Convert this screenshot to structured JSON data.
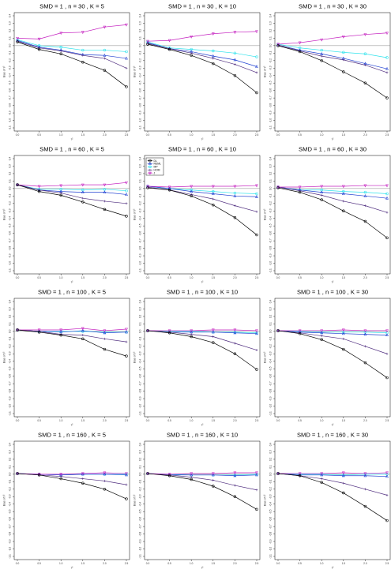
{
  "chart_data": {
    "type": "line",
    "ylabel": "Bias of τ²",
    "xlabel": "τ²",
    "x": [
      0.0,
      0.5,
      1.0,
      1.5,
      2.0,
      2.5
    ],
    "x_ticks": [
      "0.0",
      "0.5",
      "1.0",
      "1.5",
      "2.0",
      "2.5"
    ],
    "y_ticks": [
      "-1.1",
      "-1.0",
      "-0.9",
      "-0.8",
      "-0.7",
      "-0.6",
      "-0.5",
      "-0.4",
      "-0.3",
      "-0.2",
      "-0.1",
      "0.0",
      "0.1",
      "0.2",
      "0.3",
      "0.4"
    ],
    "ylim": [
      -1.1,
      0.4
    ],
    "xlim": [
      0.0,
      2.5
    ],
    "reference_line": 0,
    "legend_location": "top-left (panel n = 60, K = 10)",
    "legend": [
      {
        "name": "DL",
        "color": "#000000",
        "marker": "circle"
      },
      {
        "name": "REML",
        "color": "#1f3fd1",
        "marker": "triangle-up"
      },
      {
        "name": "MP",
        "color": "#2fe3ec",
        "marker": "circle"
      },
      {
        "name": "HOM",
        "color": "#4f2d7f",
        "marker": "cross"
      },
      {
        "name": "J",
        "color": "#c41fbf",
        "marker": "triangle-down"
      }
    ],
    "panels": [
      {
        "title": "SMD = 1 , n = 30 , K = 5",
        "series": [
          {
            "name": "J",
            "values": [
              0.1,
              0.09,
              0.17,
              0.18,
              0.25,
              0.28
            ]
          },
          {
            "name": "MP",
            "values": [
              0.08,
              0.0,
              -0.02,
              -0.06,
              -0.06,
              -0.08
            ]
          },
          {
            "name": "REML",
            "values": [
              0.07,
              -0.02,
              -0.06,
              -0.12,
              -0.13,
              -0.17
            ]
          },
          {
            "name": "HOM",
            "values": [
              0.06,
              -0.03,
              -0.07,
              -0.13,
              -0.17,
              -0.3
            ]
          },
          {
            "name": "DL",
            "values": [
              0.05,
              -0.05,
              -0.11,
              -0.22,
              -0.33,
              -0.55
            ]
          }
        ]
      },
      {
        "title": "SMD = 1 , n = 30 , K = 10",
        "series": [
          {
            "name": "J",
            "values": [
              0.06,
              0.07,
              0.12,
              0.16,
              0.18,
              0.19
            ]
          },
          {
            "name": "MP",
            "values": [
              0.05,
              -0.03,
              -0.05,
              -0.07,
              -0.1,
              -0.15
            ]
          },
          {
            "name": "REML",
            "values": [
              0.04,
              -0.04,
              -0.08,
              -0.14,
              -0.19,
              -0.28
            ]
          },
          {
            "name": "HOM",
            "values": [
              0.03,
              -0.04,
              -0.1,
              -0.17,
              -0.25,
              -0.36
            ]
          },
          {
            "name": "DL",
            "values": [
              0.02,
              -0.05,
              -0.13,
              -0.24,
              -0.4,
              -0.63
            ]
          }
        ]
      },
      {
        "title": "SMD = 1 , n = 30 , K = 30",
        "series": [
          {
            "name": "J",
            "values": [
              0.02,
              0.04,
              0.08,
              0.12,
              0.15,
              0.17
            ]
          },
          {
            "name": "MP",
            "values": [
              0.02,
              -0.03,
              -0.06,
              -0.09,
              -0.11,
              -0.16
            ]
          },
          {
            "name": "REML",
            "values": [
              0.01,
              -0.06,
              -0.11,
              -0.17,
              -0.24,
              -0.31
            ]
          },
          {
            "name": "HOM",
            "values": [
              0.01,
              -0.07,
              -0.14,
              -0.19,
              -0.26,
              -0.36
            ]
          },
          {
            "name": "DL",
            "values": [
              0.0,
              -0.08,
              -0.2,
              -0.35,
              -0.5,
              -0.7
            ]
          }
        ]
      },
      {
        "title": "SMD = 1 , n = 60 , K = 5",
        "series": [
          {
            "name": "J",
            "values": [
              0.05,
              0.03,
              0.04,
              0.05,
              0.05,
              0.08
            ]
          },
          {
            "name": "MP",
            "values": [
              0.05,
              -0.01,
              -0.01,
              -0.02,
              -0.01,
              -0.03
            ]
          },
          {
            "name": "REML",
            "values": [
              0.05,
              -0.02,
              -0.04,
              -0.05,
              -0.05,
              -0.08
            ]
          },
          {
            "name": "HOM",
            "values": [
              0.05,
              -0.02,
              -0.06,
              -0.13,
              -0.17,
              -0.2
            ]
          },
          {
            "name": "DL",
            "values": [
              0.05,
              -0.04,
              -0.09,
              -0.18,
              -0.28,
              -0.37
            ]
          }
        ]
      },
      {
        "title": "SMD = 1 , n = 60 , K = 10",
        "series": [
          {
            "name": "J",
            "values": [
              0.03,
              0.02,
              0.03,
              0.03,
              0.03,
              0.04
            ]
          },
          {
            "name": "MP",
            "values": [
              0.03,
              0.0,
              -0.02,
              -0.04,
              -0.06,
              -0.07
            ]
          },
          {
            "name": "REML",
            "values": [
              0.03,
              0.0,
              -0.04,
              -0.07,
              -0.1,
              -0.11
            ]
          },
          {
            "name": "HOM",
            "values": [
              0.02,
              -0.02,
              -0.08,
              -0.14,
              -0.23,
              -0.31
            ]
          },
          {
            "name": "DL",
            "values": [
              0.01,
              -0.02,
              -0.1,
              -0.22,
              -0.39,
              -0.62
            ]
          }
        ]
      },
      {
        "title": "SMD = 1 , n = 60 , K = 30",
        "series": [
          {
            "name": "J",
            "values": [
              0.02,
              0.02,
              0.03,
              0.03,
              0.04,
              0.04
            ]
          },
          {
            "name": "MP",
            "values": [
              0.02,
              -0.02,
              -0.02,
              -0.04,
              -0.05,
              -0.07
            ]
          },
          {
            "name": "REML",
            "values": [
              0.02,
              -0.02,
              -0.05,
              -0.07,
              -0.1,
              -0.13
            ]
          },
          {
            "name": "HOM",
            "values": [
              0.02,
              -0.03,
              -0.09,
              -0.17,
              -0.23,
              -0.32
            ]
          },
          {
            "name": "DL",
            "values": [
              0.01,
              -0.05,
              -0.15,
              -0.3,
              -0.44,
              -0.66
            ]
          }
        ]
      },
      {
        "title": "SMD = 1 , n = 100 , K = 5",
        "series": [
          {
            "name": "J",
            "values": [
              0.02,
              0.02,
              0.02,
              0.04,
              0.01,
              0.03
            ]
          },
          {
            "name": "MP",
            "values": [
              0.02,
              0.0,
              0.0,
              0.0,
              -0.01,
              -0.01
            ]
          },
          {
            "name": "REML",
            "values": [
              0.02,
              0.0,
              -0.01,
              0.01,
              -0.02,
              -0.01
            ]
          },
          {
            "name": "HOM",
            "values": [
              0.02,
              0.0,
              -0.04,
              -0.05,
              -0.1,
              -0.14
            ]
          },
          {
            "name": "DL",
            "values": [
              0.02,
              -0.01,
              -0.05,
              -0.1,
              -0.24,
              -0.33
            ]
          }
        ]
      },
      {
        "title": "SMD = 1 , n = 100 , K = 10",
        "series": [
          {
            "name": "J",
            "values": [
              0.01,
              0.01,
              0.01,
              0.02,
              0.02,
              0.01
            ]
          },
          {
            "name": "MP",
            "values": [
              0.01,
              0.0,
              0.0,
              -0.01,
              -0.01,
              -0.02
            ]
          },
          {
            "name": "REML",
            "values": [
              0.01,
              -0.01,
              -0.01,
              -0.01,
              -0.02,
              -0.03
            ]
          },
          {
            "name": "HOM",
            "values": [
              0.01,
              -0.01,
              -0.04,
              -0.07,
              -0.16,
              -0.25
            ]
          },
          {
            "name": "DL",
            "values": [
              0.01,
              -0.02,
              -0.07,
              -0.15,
              -0.3,
              -0.51
            ]
          }
        ]
      },
      {
        "title": "SMD = 1 , n = 100 , K = 30",
        "series": [
          {
            "name": "J",
            "values": [
              0.01,
              0.01,
              0.01,
              0.02,
              0.01,
              0.01
            ]
          },
          {
            "name": "MP",
            "values": [
              0.01,
              0.0,
              -0.01,
              -0.01,
              -0.01,
              -0.02
            ]
          },
          {
            "name": "REML",
            "values": [
              0.01,
              -0.01,
              -0.02,
              -0.03,
              -0.04,
              -0.05
            ]
          },
          {
            "name": "HOM",
            "values": [
              0.01,
              -0.02,
              -0.06,
              -0.1,
              -0.2,
              -0.3
            ]
          },
          {
            "name": "DL",
            "values": [
              0.01,
              -0.03,
              -0.11,
              -0.24,
              -0.42,
              -0.62
            ]
          }
        ]
      },
      {
        "title": "SMD = 1 , n = 160 , K = 5",
        "series": [
          {
            "name": "J",
            "values": [
              0.01,
              0.0,
              0.0,
              0.01,
              0.02,
              0.01
            ]
          },
          {
            "name": "MP",
            "values": [
              0.01,
              0.0,
              -0.01,
              0.0,
              0.0,
              0.0
            ]
          },
          {
            "name": "REML",
            "values": [
              0.01,
              0.0,
              -0.01,
              0.0,
              0.0,
              -0.01
            ]
          },
          {
            "name": "HOM",
            "values": [
              0.01,
              -0.01,
              -0.03,
              -0.06,
              -0.09,
              -0.14
            ]
          },
          {
            "name": "DL",
            "values": [
              0.01,
              -0.01,
              -0.06,
              -0.12,
              -0.2,
              -0.33
            ]
          }
        ]
      },
      {
        "title": "SMD = 1 , n = 160 , K = 10",
        "series": [
          {
            "name": "J",
            "values": [
              0.01,
              0.0,
              0.01,
              0.01,
              0.02,
              0.02
            ]
          },
          {
            "name": "MP",
            "values": [
              0.01,
              0.0,
              -0.01,
              -0.01,
              -0.01,
              0.0
            ]
          },
          {
            "name": "REML",
            "values": [
              0.01,
              -0.01,
              -0.01,
              -0.01,
              -0.02,
              -0.01
            ]
          },
          {
            "name": "HOM",
            "values": [
              0.01,
              -0.01,
              -0.04,
              -0.08,
              -0.15,
              -0.21
            ]
          },
          {
            "name": "DL",
            "values": [
              0.01,
              -0.02,
              -0.07,
              -0.16,
              -0.3,
              -0.47
            ]
          }
        ]
      },
      {
        "title": "SMD = 1 , n = 160 , K = 30",
        "series": [
          {
            "name": "J",
            "values": [
              0.01,
              0.01,
              0.01,
              0.02,
              0.01,
              0.02
            ]
          },
          {
            "name": "MP",
            "values": [
              0.01,
              0.0,
              0.0,
              -0.01,
              0.0,
              0.0
            ]
          },
          {
            "name": "REML",
            "values": [
              0.01,
              -0.01,
              -0.01,
              -0.02,
              -0.02,
              -0.03
            ]
          },
          {
            "name": "HOM",
            "values": [
              0.01,
              -0.02,
              -0.06,
              -0.12,
              -0.2,
              -0.28
            ]
          },
          {
            "name": "DL",
            "values": [
              0.01,
              -0.02,
              -0.11,
              -0.25,
              -0.43,
              -0.62
            ]
          }
        ]
      }
    ]
  }
}
